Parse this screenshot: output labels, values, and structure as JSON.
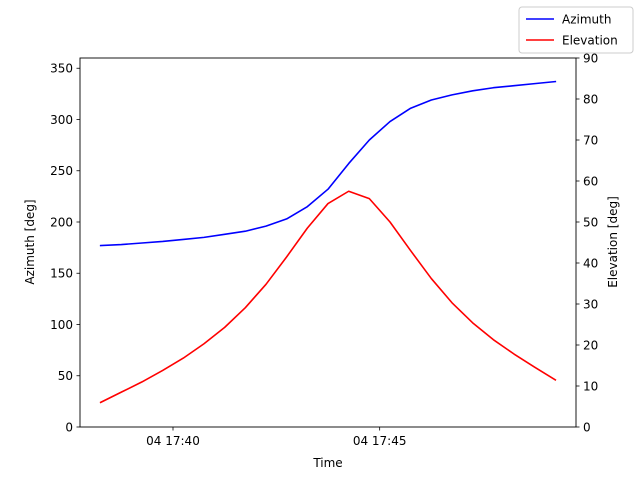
{
  "chart_data": {
    "type": "line",
    "title": "",
    "xlabel": "Time",
    "ylabel_left": "Azimuth [deg]",
    "ylabel_right": "Elevation [deg]",
    "xlim_minutes": [
      37.75,
      49.75
    ],
    "x_ticks": [
      {
        "minute": 40,
        "label": "04 17:40"
      },
      {
        "minute": 45,
        "label": "04 17:45"
      }
    ],
    "ylim_left": [
      0,
      360
    ],
    "yticks_left": [
      0,
      50,
      100,
      150,
      200,
      250,
      300,
      350
    ],
    "ylim_right": [
      0,
      90
    ],
    "yticks_right": [
      0,
      10,
      20,
      30,
      40,
      50,
      60,
      70,
      80,
      90
    ],
    "grid": false,
    "legend_position": "top-right",
    "x_minutes": [
      38.25,
      38.75,
      39.25,
      39.75,
      40.25,
      40.75,
      41.25,
      41.75,
      42.25,
      42.75,
      43.25,
      43.75,
      44.25,
      44.75,
      45.25,
      45.75,
      46.25,
      46.75,
      47.25,
      47.75,
      48.25,
      48.75,
      49.25
    ],
    "series": [
      {
        "name": "Azimuth",
        "axis": "left",
        "color": "#0000ff",
        "values": [
          177,
          178,
          179.5,
          181,
          183,
          185,
          188,
          191,
          196,
          203,
          215,
          232,
          257,
          280,
          298,
          311,
          319,
          324,
          328,
          331,
          333,
          335,
          337
        ]
      },
      {
        "name": "Elevation",
        "axis": "right",
        "color": "#ff0000",
        "values": [
          6,
          8.5,
          11,
          13.8,
          16.8,
          20.3,
          24.3,
          29.1,
          34.8,
          41.5,
          48.5,
          54.5,
          57.5,
          55.7,
          50,
          43,
          36.2,
          30.3,
          25.4,
          21.3,
          17.8,
          14.6,
          11.5
        ]
      }
    ]
  }
}
